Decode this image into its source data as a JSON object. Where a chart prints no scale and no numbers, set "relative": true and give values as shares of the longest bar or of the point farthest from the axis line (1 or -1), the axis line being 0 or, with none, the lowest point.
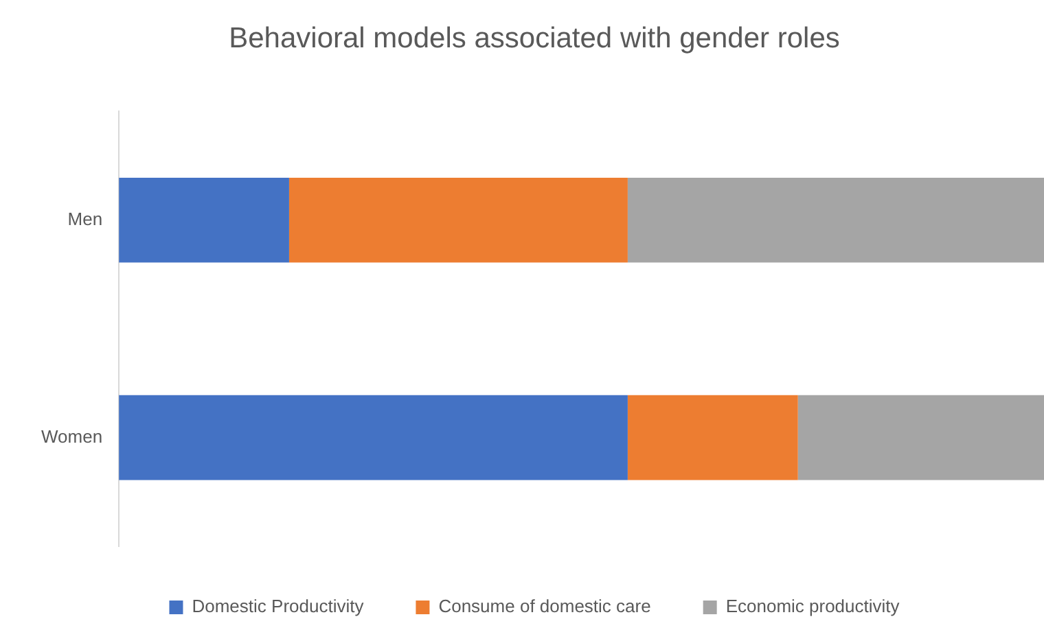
{
  "chart_data": {
    "type": "bar",
    "title": "Behavioral models associated with gender roles",
    "orientation": "horizontal",
    "stacked": true,
    "relative": true,
    "categories": [
      "Men",
      "Women"
    ],
    "legend": "bottom",
    "grid": false,
    "series": [
      {
        "name": "Domestic Productivity",
        "color": "#4472c4",
        "values": [
          0.184,
          0.55
        ]
      },
      {
        "name": "Consume of domestic care",
        "color": "#ed7d31",
        "values": [
          0.366,
          0.184
        ]
      },
      {
        "name": "Economic productivity",
        "color": "#a5a5a5",
        "values": [
          0.45,
          0.266
        ]
      }
    ]
  }
}
